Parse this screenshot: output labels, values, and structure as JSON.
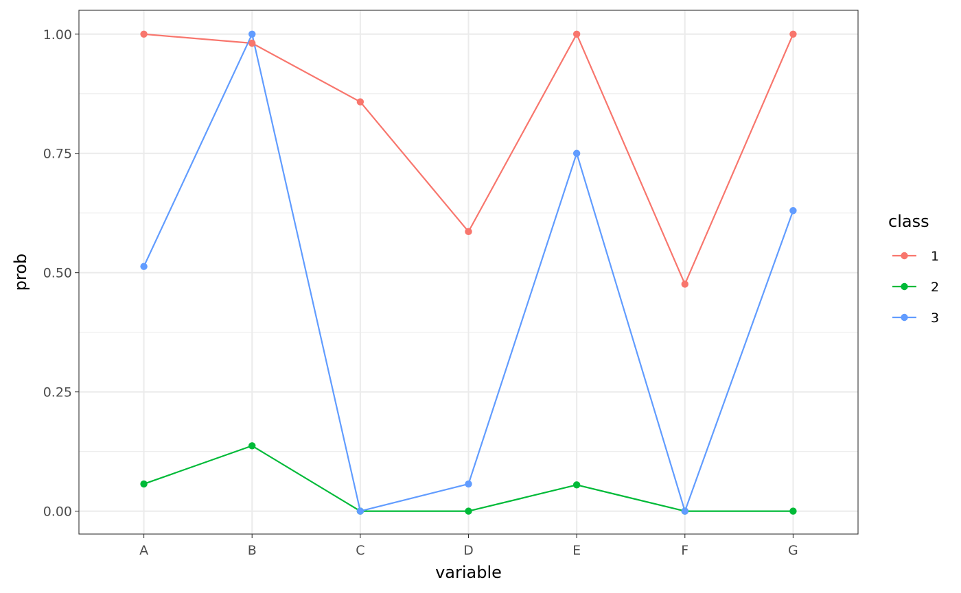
{
  "chart_data": {
    "type": "line",
    "title": "",
    "xlabel": "variable",
    "ylabel": "prob",
    "categories": [
      "A",
      "B",
      "C",
      "D",
      "E",
      "F",
      "G"
    ],
    "ylim": [
      -0.048,
      1.05
    ],
    "yticks": [
      0,
      0.25,
      0.5,
      0.75,
      1
    ],
    "ytick_labels": [
      "0.00",
      "0.25",
      "0.50",
      "0.75",
      "1.00"
    ],
    "grid": true,
    "legend": {
      "title": "class",
      "position": "right"
    },
    "series": [
      {
        "name": "1",
        "color": "#F8766D",
        "values": [
          1.0,
          0.981,
          0.858,
          0.586,
          1.0,
          0.476,
          1.0
        ]
      },
      {
        "name": "2",
        "color": "#00BA38",
        "values": [
          0.057,
          0.137,
          0.0,
          0.0,
          0.055,
          0.0,
          0.0
        ]
      },
      {
        "name": "3",
        "color": "#619CFF",
        "values": [
          0.513,
          1.0,
          0.0,
          0.057,
          0.75,
          0.0,
          0.63
        ]
      }
    ]
  }
}
